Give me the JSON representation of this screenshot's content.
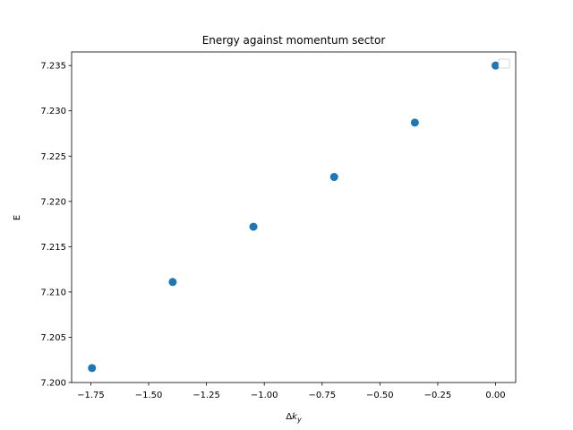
{
  "chart_data": {
    "type": "scatter",
    "title": "Energy against momentum sector",
    "xlabel_main": "Δ",
    "xlabel_italic": "k",
    "xlabel_sub": "y",
    "ylabel": "E",
    "xlim": [
      -1.833,
      0.087
    ],
    "ylim": [
      7.2,
      7.2365
    ],
    "x_ticks": [
      -1.75,
      -1.5,
      -1.25,
      -1.0,
      -0.75,
      -0.5,
      -0.25,
      0.0
    ],
    "x_tick_labels": [
      "−1.75",
      "−1.50",
      "−1.25",
      "−1.00",
      "−0.75",
      "−0.50",
      "−0.25",
      "0.00"
    ],
    "y_ticks": [
      7.2,
      7.205,
      7.21,
      7.215,
      7.22,
      7.225,
      7.23,
      7.235
    ],
    "y_tick_labels": [
      "7.200",
      "7.205",
      "7.210",
      "7.215",
      "7.220",
      "7.225",
      "7.230",
      "7.235"
    ],
    "points": [
      {
        "x": -1.745,
        "y": 7.2016
      },
      {
        "x": -1.396,
        "y": 7.2111
      },
      {
        "x": -1.047,
        "y": 7.2172
      },
      {
        "x": -0.698,
        "y": 7.2227
      },
      {
        "x": -0.349,
        "y": 7.2287
      },
      {
        "x": 0.0,
        "y": 7.235
      }
    ],
    "marker_color": "#1f77b4",
    "grid": false,
    "legend": {
      "placement": "top-right",
      "entries": []
    }
  }
}
